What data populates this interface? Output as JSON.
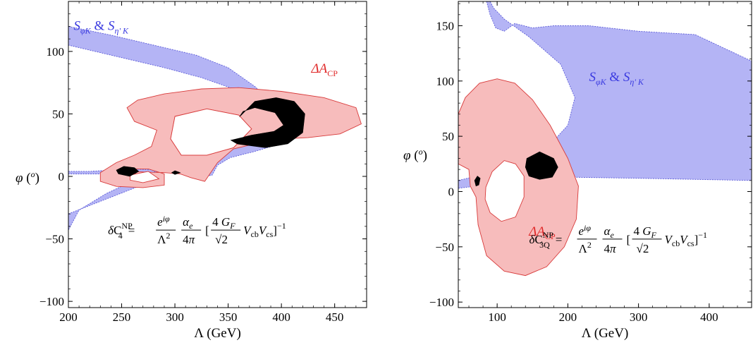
{
  "chart_data": [
    {
      "type": "area",
      "panel": "left",
      "xlabel": "Λ (GeV)",
      "ylabel": "φ (o)",
      "xlim": [
        200,
        480
      ],
      "ylim": [
        -105,
        140
      ],
      "xticks": [
        200,
        250,
        300,
        350,
        400,
        450
      ],
      "yticks": [
        -100,
        -50,
        0,
        50,
        100
      ],
      "xtick_labels": [
        "200",
        "250",
        "300",
        "350",
        "400",
        "450"
      ],
      "ytick_labels": [
        "−100",
        "−50",
        "0",
        "50",
        "100"
      ],
      "grid": false,
      "regions": [
        {
          "name": "S_φK & S_η'K",
          "label_main": "S",
          "label_sub1": "φK",
          "label_amp": " & S",
          "label_sub2": "η' K",
          "label_x": 205,
          "label_y": 117,
          "color": "#b4b4f5",
          "stroke": "#5a5ad8",
          "polygons": [
            [
              [
                200,
                120
              ],
              [
                240,
                113
              ],
              [
                280,
                105
              ],
              [
                320,
                97
              ],
              [
                350,
                87
              ],
              [
                375,
                72
              ],
              [
                395,
                56
              ],
              [
                410,
                45
              ],
              [
                420,
                40
              ],
              [
                415,
                32
              ],
              [
                395,
                25
              ],
              [
                375,
                20
              ],
              [
                352,
                15
              ],
              [
                340,
                9
              ],
              [
                335,
                1
              ],
              [
                322,
                -1
              ],
              [
                305,
                2
              ],
              [
                300,
                6
              ],
              [
                310,
                12
              ],
              [
                330,
                16
              ],
              [
                350,
                23
              ],
              [
                370,
                29
              ],
              [
                390,
                35
              ],
              [
                401,
                40
              ],
              [
                396,
                48
              ],
              [
                380,
                58
              ],
              [
                355,
                70
              ],
              [
                325,
                79
              ],
              [
                290,
                87
              ],
              [
                250,
                95
              ],
              [
                200,
                105
              ]
            ],
            [
              [
                200,
                4
              ],
              [
                220,
                4
              ],
              [
                240,
                5
              ],
              [
                260,
                6
              ],
              [
                285,
                5
              ],
              [
                285,
                1
              ],
              [
                260,
                2
              ],
              [
                240,
                2
              ],
              [
                220,
                2
              ],
              [
                200,
                2
              ]
            ],
            [
              [
                200,
                -30
              ],
              [
                230,
                -20
              ],
              [
                260,
                -10
              ],
              [
                280,
                -3
              ],
              [
                290,
                0
              ],
              [
                282,
                4
              ],
              [
                262,
                -3
              ],
              [
                235,
                -14
              ],
              [
                210,
                -27
              ],
              [
                200,
                -43
              ]
            ]
          ]
        },
        {
          "name": "ΔA_CP",
          "label_main": "ΔA",
          "label_sub1": "CP",
          "label_x": 428,
          "label_y": 83,
          "color": "#f7bcbc",
          "stroke": "#d83a3a",
          "polygons": [
            [
              [
                255,
                4
              ],
              [
                290,
                3
              ],
              [
                305,
                2
              ],
              [
                315,
                -1
              ],
              [
                328,
                -4
              ],
              [
                340,
                11
              ],
              [
                355,
                22
              ],
              [
                380,
                27
              ],
              [
                400,
                30
              ],
              [
                425,
                31
              ],
              [
                455,
                34
              ],
              [
                475,
                42
              ],
              [
                470,
                55
              ],
              [
                440,
                63
              ],
              [
                400,
                68
              ],
              [
                360,
                71
              ],
              [
                325,
                70
              ],
              [
                290,
                66
              ],
              [
                265,
                61
              ],
              [
                255,
                55
              ],
              [
                262,
                44
              ],
              [
                283,
                37
              ],
              [
                278,
                24
              ],
              [
                262,
                17
              ],
              [
                245,
                11
              ],
              [
                230,
                3
              ],
              [
                230,
                -4
              ],
              [
                245,
                -8
              ],
              [
                270,
                -9
              ],
              [
                290,
                -7
              ],
              [
                290,
                2
              ],
              [
                275,
                6
              ],
              [
                262,
                6
              ]
            ],
            [
              [
                300,
                48
              ],
              [
                330,
                54
              ],
              [
                360,
                49
              ],
              [
                372,
                38
              ],
              [
                355,
                23
              ],
              [
                330,
                17
              ],
              [
                306,
                17
              ],
              [
                296,
                30
              ]
            ]
          ]
        },
        {
          "name": "overlap",
          "color": "#000000",
          "stroke": "#000000",
          "polygons": [
            [
              [
                360,
                47
              ],
              [
                375,
                60
              ],
              [
                395,
                63
              ],
              [
                412,
                60
              ],
              [
                422,
                50
              ],
              [
                420,
                35
              ],
              [
                406,
                26
              ],
              [
                385,
                23
              ],
              [
                358,
                26
              ],
              [
                352,
                29
              ],
              [
                372,
                33
              ],
              [
                393,
                36
              ],
              [
                402,
                41
              ],
              [
                394,
                51
              ],
              [
                375,
                55
              ],
              [
                364,
                52
              ]
            ],
            [
              [
                245,
                5
              ],
              [
                252,
                8
              ],
              [
                262,
                7
              ],
              [
                266,
                4
              ],
              [
                258,
                0
              ],
              [
                247,
                2
              ]
            ],
            [
              [
                297,
                3
              ],
              [
                300,
                4.5
              ],
              [
                305,
                3
              ],
              [
                300,
                1.5
              ]
            ]
          ]
        }
      ],
      "holes": [
        [
          [
            300,
            48
          ],
          [
            330,
            54
          ],
          [
            360,
            49
          ],
          [
            372,
            38
          ],
          [
            355,
            23
          ],
          [
            330,
            17
          ],
          [
            306,
            17
          ],
          [
            296,
            30
          ]
        ],
        [
          [
            258,
            1
          ],
          [
            275,
            4
          ],
          [
            285,
            -2
          ],
          [
            270,
            -5
          ],
          [
            258,
            -3
          ]
        ]
      ],
      "annotation": {
        "lhs": "δC",
        "lhs_sub": "4",
        "lhs_sup": "NP",
        "rhs": "= e^{iφ}/Λ^2 · α_e/4π [4 G_F/√2 V_cb V_cs]^{−1}",
        "x": 310,
        "y": -43
      }
    },
    {
      "type": "area",
      "panel": "right",
      "xlabel": "Λ (GeV)",
      "ylabel": "φ (o)",
      "xlim": [
        45,
        460
      ],
      "ylim": [
        -105,
        172
      ],
      "xticks": [
        100,
        200,
        300,
        400
      ],
      "yticks": [
        -100,
        -50,
        0,
        50,
        100,
        150
      ],
      "xtick_labels": [
        "100",
        "200",
        "300",
        "400"
      ],
      "ytick_labels": [
        "−100",
        "−50",
        "0",
        "50",
        "100",
        "150"
      ],
      "grid": false,
      "regions": [
        {
          "name": "S_φK & S_η'K",
          "label_main": "S",
          "label_sub1": "φK",
          "label_amp": " & S",
          "label_sub2": "η' K",
          "label_x": 230,
          "label_y": 100,
          "color": "#b4b4f5",
          "stroke": "#5a5ad8",
          "polygons": [
            [
              [
                85,
                172
              ],
              [
                90,
                160
              ],
              [
                98,
                148
              ],
              [
                110,
                145
              ],
              [
                125,
                152
              ],
              [
                150,
                148
              ],
              [
                180,
                150
              ],
              [
                230,
                150
              ],
              [
                300,
                145
              ],
              [
                380,
                142
              ],
              [
                460,
                118
              ],
              [
                460,
                10
              ],
              [
                300,
                12
              ],
              [
                200,
                13
              ],
              [
                140,
                11
              ],
              [
                100,
                7
              ],
              [
                45,
                3
              ],
              [
                45,
                10
              ],
              [
                110,
                20
              ],
              [
                170,
                39
              ],
              [
                200,
                60
              ],
              [
                210,
                85
              ],
              [
                190,
                115
              ],
              [
                145,
                140
              ],
              [
                110,
                156
              ],
              [
                95,
                166
              ],
              [
                90,
                172
              ]
            ]
          ]
        },
        {
          "name": "ΔA_CP",
          "label_main": "ΔA",
          "label_sub1": "CP",
          "label_x": 145,
          "label_y": -40,
          "color": "#f7bcbc",
          "stroke": "#d83a3a",
          "polygons": [
            [
              [
                45,
                70
              ],
              [
                55,
                85
              ],
              [
                75,
                98
              ],
              [
                100,
                102
              ],
              [
                125,
                98
              ],
              [
                150,
                83
              ],
              [
                175,
                60
              ],
              [
                200,
                30
              ],
              [
                215,
                5
              ],
              [
                212,
                -25
              ],
              [
                195,
                -50
              ],
              [
                170,
                -68
              ],
              [
                140,
                -76
              ],
              [
                110,
                -72
              ],
              [
                85,
                -58
              ],
              [
                73,
                -30
              ],
              [
                70,
                -5
              ],
              [
                62,
                5
              ],
              [
                60,
                20
              ],
              [
                45,
                25
              ]
            ]
          ]
        },
        {
          "name": "overlap",
          "color": "#000000",
          "stroke": "#000000",
          "polygons": [
            [
              [
                142,
                30
              ],
              [
                160,
                36
              ],
              [
                180,
                30
              ],
              [
                186,
                22
              ],
              [
                178,
                13
              ],
              [
                160,
                11
              ],
              [
                145,
                14
              ],
              [
                140,
                22
              ]
            ],
            [
              [
                68,
                10
              ],
              [
                72,
                14
              ],
              [
                76,
                12
              ],
              [
                74,
                6
              ],
              [
                70,
                5
              ]
            ]
          ]
        }
      ],
      "holes": [
        [
          [
            84,
            4
          ],
          [
            93,
            18
          ],
          [
            110,
            28
          ],
          [
            126,
            25
          ],
          [
            138,
            14
          ],
          [
            138,
            -5
          ],
          [
            126,
            -23
          ],
          [
            106,
            -27
          ],
          [
            90,
            -19
          ],
          [
            83,
            -7
          ]
        ]
      ],
      "annotation": {
        "lhs": "δC",
        "lhs_sub": "3Q",
        "lhs_sup": "NP",
        "rhs": "= e^{iφ}/Λ^2 · α_e/4π [4 G_F/√2 V_cb V_cs]^{−1}",
        "x": 255,
        "y": -43
      }
    }
  ]
}
